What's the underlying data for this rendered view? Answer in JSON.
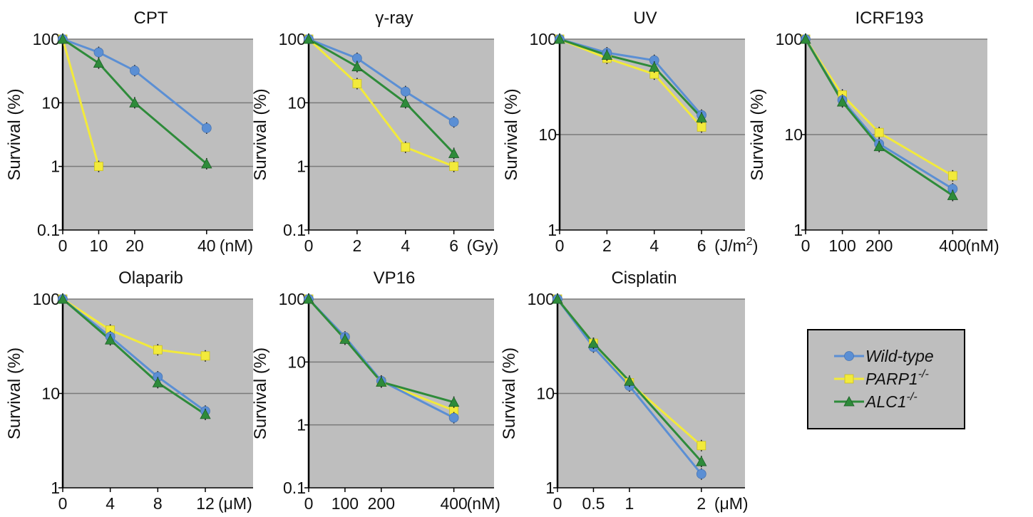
{
  "legend": {
    "position": "right",
    "entries": [
      {
        "series": "wt",
        "name": "Wild-type",
        "sup": "",
        "color": "#5b8fd4",
        "marker": "circle"
      },
      {
        "series": "parp1",
        "name": "PARP1",
        "sup": "-/-",
        "color": "#f2ea3b",
        "marker": "square"
      },
      {
        "series": "alc1",
        "name": "ALC1",
        "sup": "-/-",
        "color": "#2e8b3a",
        "marker": "triangle"
      }
    ]
  },
  "colors": {
    "panel_bg": "#bebebe",
    "grid": "#7a7a7a",
    "wild_type": "#5b8fd4",
    "parp1": "#f2ea3b",
    "alc1": "#2e8b3a"
  },
  "chart_data": [
    {
      "type": "line",
      "title": "CPT",
      "ylabel": "Survival (%)",
      "yscale": "log",
      "ylim": [
        0.1,
        100
      ],
      "yticks": [
        "0.1",
        "1",
        "10",
        "100"
      ],
      "xlim": [
        0,
        44
      ],
      "xticks": [
        "0",
        "10",
        "20",
        "40"
      ],
      "xunit": "(nM)",
      "grid": true,
      "series": [
        {
          "key": "wt",
          "x": [
            0,
            10,
            20,
            40
          ],
          "y": [
            100,
            62,
            32,
            4
          ]
        },
        {
          "key": "parp1",
          "x": [
            0,
            10
          ],
          "y": [
            100,
            1
          ]
        },
        {
          "key": "alc1",
          "x": [
            0,
            10,
            20,
            40
          ],
          "y": [
            100,
            42,
            10,
            1.1
          ]
        }
      ]
    },
    {
      "type": "line",
      "title": "γ-ray",
      "ylabel": "Survival (%)",
      "yscale": "log",
      "ylim": [
        0.1,
        100
      ],
      "yticks": [
        "0.1",
        "1",
        "10",
        "100"
      ],
      "xlim": [
        0,
        6.6
      ],
      "xticks": [
        "0",
        "2",
        "4",
        "6"
      ],
      "xunit": "(Gy)",
      "grid": true,
      "series": [
        {
          "key": "wt",
          "x": [
            0,
            2,
            4,
            6
          ],
          "y": [
            100,
            50,
            15,
            5
          ]
        },
        {
          "key": "parp1",
          "x": [
            0,
            2,
            4,
            6
          ],
          "y": [
            100,
            20,
            2,
            1
          ]
        },
        {
          "key": "alc1",
          "x": [
            0,
            2,
            4,
            6
          ],
          "y": [
            100,
            37,
            10,
            1.6
          ]
        }
      ]
    },
    {
      "type": "line",
      "title": "UV",
      "ylabel": "Survival (%)",
      "yscale": "log",
      "ylim": [
        1,
        100
      ],
      "yticks": [
        "1",
        "10",
        "100"
      ],
      "xlim": [
        0,
        6.6
      ],
      "xticks": [
        "0",
        "2",
        "4",
        "6"
      ],
      "xunit": "(J/m",
      "xunit_sup": "2",
      "xunit_tail": ")",
      "grid": true,
      "series": [
        {
          "key": "wt",
          "x": [
            0,
            2,
            4,
            6
          ],
          "y": [
            100,
            72,
            60,
            16
          ]
        },
        {
          "key": "parp1",
          "x": [
            0,
            2,
            4,
            6
          ],
          "y": [
            100,
            63,
            43,
            12
          ]
        },
        {
          "key": "alc1",
          "x": [
            0,
            2,
            4,
            6
          ],
          "y": [
            100,
            68,
            51,
            15
          ]
        }
      ]
    },
    {
      "type": "line",
      "title": "ICRF193",
      "ylabel": "Survival (%)",
      "yscale": "log",
      "ylim": [
        1,
        100
      ],
      "yticks": [
        "1",
        "10",
        "100"
      ],
      "xlim": [
        0,
        440
      ],
      "xticks": [
        "0",
        "100",
        "200",
        "400"
      ],
      "xunit": "(nM)",
      "grid": true,
      "series": [
        {
          "key": "wt",
          "x": [
            0,
            100,
            200,
            400
          ],
          "y": [
            100,
            23,
            8,
            2.7
          ]
        },
        {
          "key": "parp1",
          "x": [
            0,
            100,
            200,
            400
          ],
          "y": [
            100,
            26,
            10.5,
            3.7
          ]
        },
        {
          "key": "alc1",
          "x": [
            0,
            100,
            200,
            400
          ],
          "y": [
            100,
            22,
            7.5,
            2.3
          ]
        }
      ]
    },
    {
      "type": "line",
      "title": "Olaparib",
      "ylabel": "Survival (%)",
      "yscale": "log",
      "ylim": [
        1,
        100
      ],
      "yticks": [
        "1",
        "10",
        "100"
      ],
      "xlim": [
        0,
        13.2
      ],
      "xticks": [
        "0",
        "4",
        "8",
        "12"
      ],
      "xunit": "(μM)",
      "grid": true,
      "series": [
        {
          "key": "wt",
          "x": [
            0,
            4,
            8,
            12
          ],
          "y": [
            100,
            40,
            15,
            6.5
          ]
        },
        {
          "key": "parp1",
          "x": [
            0,
            4,
            8,
            12
          ],
          "y": [
            100,
            47,
            29,
            25
          ]
        },
        {
          "key": "alc1",
          "x": [
            0,
            4,
            8,
            12
          ],
          "y": [
            100,
            37,
            13,
            6
          ]
        }
      ]
    },
    {
      "type": "line",
      "title": "VP16",
      "ylabel": "Survival (%)",
      "yscale": "log",
      "ylim": [
        0.1,
        100
      ],
      "yticks": [
        "0.1",
        "1",
        "10",
        "100"
      ],
      "xlim": [
        0,
        440
      ],
      "xticks": [
        "0",
        "100",
        "200",
        "400"
      ],
      "xunit": "(nM)",
      "grid": true,
      "series": [
        {
          "key": "wt",
          "x": [
            0,
            100,
            200,
            400
          ],
          "y": [
            100,
            25,
            5,
            1.3
          ]
        },
        {
          "key": "parp1",
          "x": [
            0,
            100,
            200,
            400
          ],
          "y": [
            100,
            24,
            4.8,
            1.7
          ]
        },
        {
          "key": "alc1",
          "x": [
            0,
            100,
            200,
            400
          ],
          "y": [
            100,
            23,
            4.8,
            2.3
          ]
        }
      ]
    },
    {
      "type": "line",
      "title": "Cisplatin",
      "ylabel": "Survival (%)",
      "yscale": "log",
      "ylim": [
        1,
        100
      ],
      "yticks": [
        "1",
        "10",
        "100"
      ],
      "xlim": [
        0,
        2.2
      ],
      "xticks": [
        "0",
        "0.5",
        "1",
        "2"
      ],
      "xunit": "(μM)",
      "grid": true,
      "series": [
        {
          "key": "wt",
          "x": [
            0,
            0.5,
            1,
            2
          ],
          "y": [
            100,
            31,
            12,
            1.4
          ]
        },
        {
          "key": "parp1",
          "x": [
            0,
            0.5,
            1,
            2
          ],
          "y": [
            100,
            34,
            13,
            2.8
          ]
        },
        {
          "key": "alc1",
          "x": [
            0,
            0.5,
            1,
            2
          ],
          "y": [
            100,
            34,
            13.5,
            1.9
          ]
        }
      ]
    }
  ]
}
